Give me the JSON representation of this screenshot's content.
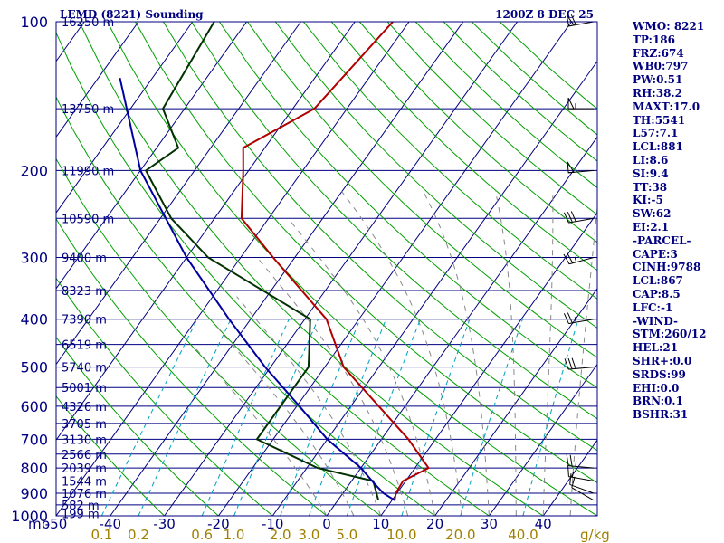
{
  "chart_data": {
    "type": "skew-t",
    "title": "LEMD (8221) Sounding",
    "valid_time": "1200Z  8 DEC 25",
    "pressure_axis_unit": "mb",
    "pressure_levels": [
      100,
      200,
      300,
      400,
      500,
      600,
      700,
      800,
      900,
      1000
    ],
    "pressure_range": [
      1000,
      100
    ],
    "temperature_ticks": [
      "-50",
      "-40",
      "-30",
      "-20",
      "-10",
      "0",
      "10",
      "20",
      "30",
      "40"
    ],
    "temperature_range_c": [
      -50,
      50
    ],
    "mixing_ratio_unit": "g/kg",
    "mixing_ratio_labels": [
      "0.1",
      "0.2",
      "0.6",
      "1.0",
      "2.0",
      "3.0",
      "5.0",
      "10.0",
      "20.0",
      "40.0"
    ],
    "height_labels": [
      {
        "p": 100,
        "label": "16250 m"
      },
      {
        "p": 150,
        "label": "13750 m"
      },
      {
        "p": 200,
        "label": "11990 m"
      },
      {
        "p": 250,
        "label": "10590 m"
      },
      {
        "p": 300,
        "label": "9400 m"
      },
      {
        "p": 350,
        "label": "8323 m"
      },
      {
        "p": 400,
        "label": "7390 m"
      },
      {
        "p": 450,
        "label": "6519 m"
      },
      {
        "p": 500,
        "label": "5740 m"
      },
      {
        "p": 550,
        "label": "5001 m"
      },
      {
        "p": 600,
        "label": "4326 m"
      },
      {
        "p": 650,
        "label": "3705 m"
      },
      {
        "p": 700,
        "label": "3130 m"
      },
      {
        "p": 750,
        "label": "2566 m"
      },
      {
        "p": 800,
        "label": "2039 m"
      },
      {
        "p": 850,
        "label": "1544 m"
      },
      {
        "p": 900,
        "label": "1076 m"
      },
      {
        "p": 950,
        "label": "582 m"
      },
      {
        "p": 990,
        "label": "199 m"
      }
    ],
    "series": [
      {
        "name": "Temperature",
        "color": "#b00000",
        "points": [
          {
            "p": 930,
            "t": 10.5
          },
          {
            "p": 900,
            "t": 9.8
          },
          {
            "p": 850,
            "t": 9.5
          },
          {
            "p": 800,
            "t": 12.5
          },
          {
            "p": 700,
            "t": 5.0
          },
          {
            "p": 500,
            "t": -16.5
          },
          {
            "p": 400,
            "t": -26.0
          },
          {
            "p": 300,
            "t": -44.0
          },
          {
            "p": 250,
            "t": -55.0
          },
          {
            "p": 200,
            "t": -61.0
          },
          {
            "p": 180,
            "t": -64.0
          },
          {
            "p": 150,
            "t": -56.0
          },
          {
            "p": 100,
            "t": -53.0
          }
        ]
      },
      {
        "name": "Dewpoint",
        "color": "#003000",
        "points": [
          {
            "p": 930,
            "t": 7.5
          },
          {
            "p": 850,
            "t": 4.0
          },
          {
            "p": 800,
            "t": -8.0
          },
          {
            "p": 700,
            "t": -23.0
          },
          {
            "p": 500,
            "t": -23.0
          },
          {
            "p": 400,
            "t": -29.0
          },
          {
            "p": 300,
            "t": -56.0
          },
          {
            "p": 250,
            "t": -68.0
          },
          {
            "p": 200,
            "t": -79.0
          },
          {
            "p": 180,
            "t": -76.0
          },
          {
            "p": 150,
            "t": -84.0
          },
          {
            "p": 100,
            "t": -86.0
          }
        ]
      },
      {
        "name": "Parcel",
        "color": "#0000a0",
        "points": [
          {
            "p": 930,
            "t": 10.5
          },
          {
            "p": 900,
            "t": 7.5
          },
          {
            "p": 860,
            "t": 4.5
          },
          {
            "p": 800,
            "t": 0.0
          },
          {
            "p": 700,
            "t": -10.0
          },
          {
            "p": 600,
            "t": -19.5
          },
          {
            "p": 500,
            "t": -31.0
          },
          {
            "p": 400,
            "t": -44.0
          },
          {
            "p": 300,
            "t": -60.0
          },
          {
            "p": 200,
            "t": -80.0
          },
          {
            "p": 130,
            "t": -96.0
          }
        ]
      }
    ],
    "wind_barbs": [
      {
        "p": 100,
        "dir": 260,
        "spd": 60
      },
      {
        "p": 150,
        "dir": 270,
        "spd": 55
      },
      {
        "p": 200,
        "dir": 265,
        "spd": 50
      },
      {
        "p": 250,
        "dir": 260,
        "spd": 30
      },
      {
        "p": 300,
        "dir": 255,
        "spd": 25
      },
      {
        "p": 400,
        "dir": 260,
        "spd": 25
      },
      {
        "p": 500,
        "dir": 265,
        "spd": 30
      },
      {
        "p": 800,
        "dir": 275,
        "spd": 25
      },
      {
        "p": 850,
        "dir": 280,
        "spd": 15
      },
      {
        "p": 900,
        "dir": 290,
        "spd": 10
      },
      {
        "p": 930,
        "dir": 300,
        "spd": 10
      }
    ]
  },
  "stats": [
    "WMO: 8221",
    "TP:186",
    "FRZ:674",
    "WB0:797",
    "PW:0.51",
    "RH:38.2",
    "MAXT:17.0",
    "TH:5541",
    "L57:7.1",
    "LCL:881",
    "LI:8.6",
    "SI:9.4",
    "TT:38",
    "KI:-5",
    "SW:62",
    "EI:2.1",
    "-PARCEL-",
    "CAPE:3",
    "CINH:9788",
    "LCL:867",
    "CAP:8.5",
    "LFC:-1",
    "-WIND-",
    "STM:260/12",
    "HEL:21",
    "SHR+:0.0",
    "SRDS:99",
    "EHI:0.0",
    "BRN:0.1",
    "BSHR:31"
  ],
  "colors": {
    "axis": "#000080",
    "isobar": "#000080",
    "isotherm": "#000080",
    "dry_adiabat": "#00a000",
    "moist_adiabat": "#888888",
    "mixing_ratio": "#00a0c0",
    "label_temp": "#000080",
    "label_mix": "#a08000"
  }
}
